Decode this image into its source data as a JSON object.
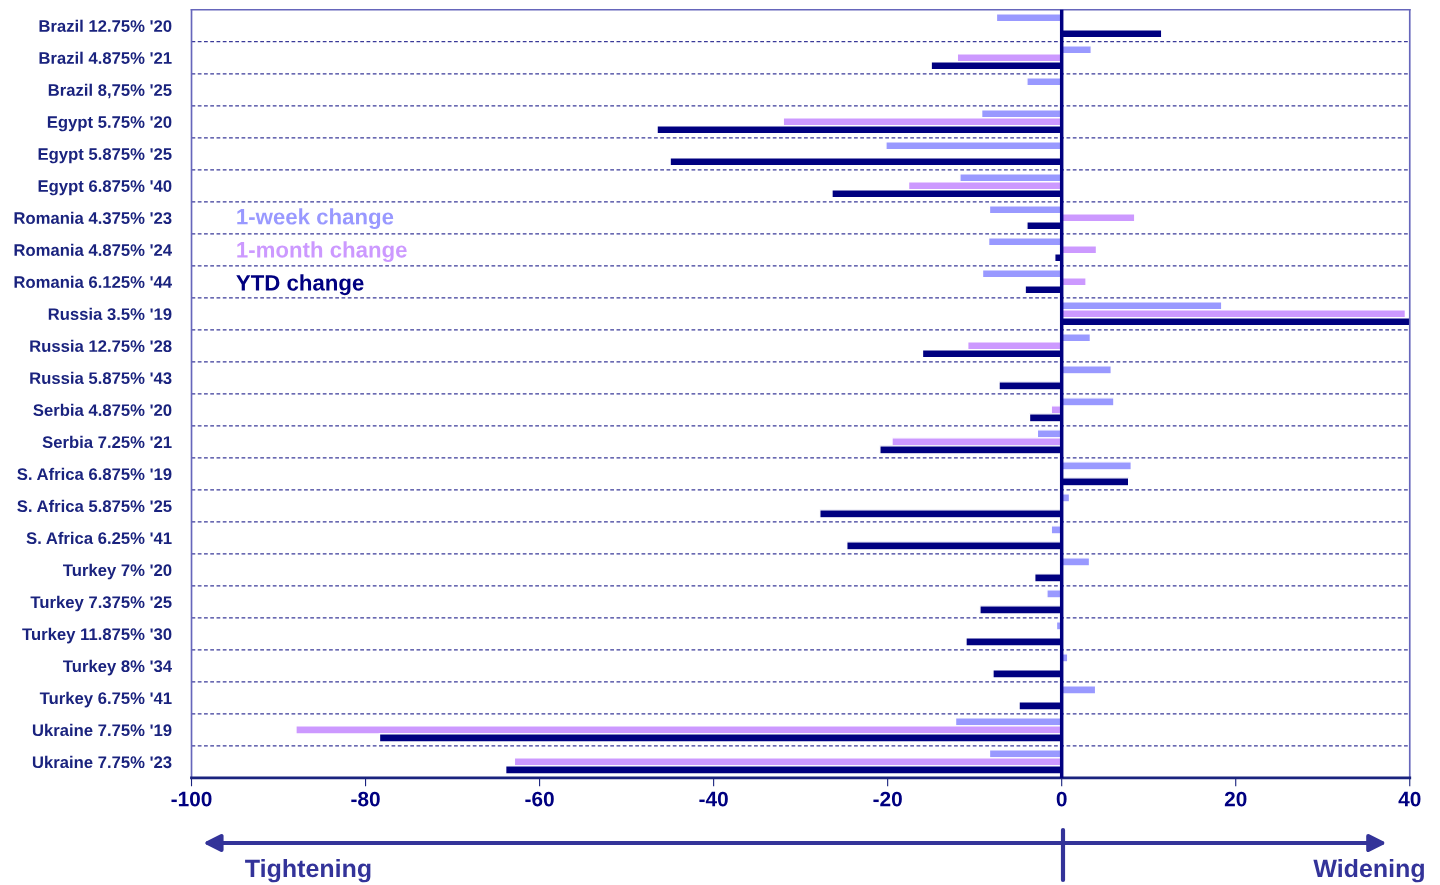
{
  "chart_data": {
    "type": "bar",
    "orientation": "horizontal",
    "categories": [
      "Brazil 12.75% '20",
      "Brazil 4.875% '21",
      "Brazil 8,75% '25",
      "Egypt 5.75% '20",
      "Egypt 5.875% '25",
      "Egypt 6.875% '40",
      "Romania 4.375% '23",
      "Romania 4.875% '24",
      "Romania 6.125% '44",
      "Russia 3.5% '19",
      "Russia 12.75% '28",
      "Russia 5.875% '43",
      "Serbia 4.875% '20",
      "Serbia 7.25% '21",
      "S. Africa 6.875% '19",
      "S. Africa 5.875% '25",
      "S. Africa 6.25% '41",
      "Turkey 7% '20",
      "Turkey 7.375% '25",
      "Turkey 11.875% '30",
      "Turkey 8% '34",
      "Turkey 6.75% '41",
      "Ukraine 7.75% '19",
      "Ukraine 7.75% '23"
    ],
    "series": [
      {
        "name": "1-week change",
        "color": "#9999ff",
        "values": [
          -7.5,
          3.4,
          -4,
          -9.2,
          -20.2,
          -11.7,
          -8.3,
          -8.4,
          -9.1,
          18.4,
          3.3,
          5.7,
          6,
          -2.8,
          8,
          0.9,
          -1.2,
          3.2,
          -1.7,
          -0.6,
          0.7,
          3.9,
          -12.2,
          -8.3
        ]
      },
      {
        "name": "1-month change",
        "color": "#cc99ff",
        "values": [
          null,
          -12,
          null,
          -32,
          null,
          -17.6,
          8.4,
          4,
          2.8,
          39.5,
          -10.8,
          null,
          -1.2,
          -19.5,
          null,
          null,
          null,
          null,
          null,
          null,
          null,
          null,
          -88,
          -62.9
        ]
      },
      {
        "name": "YTD change",
        "color": "#000080",
        "values": [
          11.5,
          -15,
          null,
          -46.5,
          -45,
          -26.4,
          -4,
          -0.8,
          -4.2,
          40,
          -16,
          -7.2,
          -3.7,
          -20.9,
          7.7,
          -27.8,
          -24.7,
          -3.1,
          -9.4,
          -11,
          -7.9,
          -4.9,
          -78.4,
          -63.9
        ]
      }
    ],
    "xlim": [
      -100,
      40
    ],
    "xticks": [
      -100,
      -80,
      -60,
      -40,
      -20,
      0,
      20,
      40
    ],
    "grid": "y",
    "legend": "left",
    "ref_lines": [
      {
        "axis": "x",
        "value": 0,
        "color": "#000080"
      }
    ],
    "annotations": [
      "Tightening",
      "Widening"
    ]
  }
}
